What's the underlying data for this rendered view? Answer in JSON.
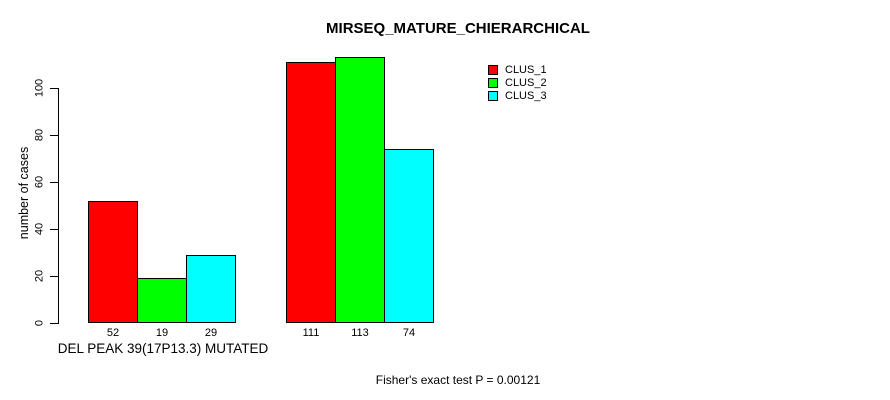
{
  "chart_data": {
    "type": "bar",
    "title": "MIRSEQ_MATURE_CHIERARCHICAL",
    "ylabel": "number of cases",
    "xlabel": "DEL PEAK 39(17P13.3) MUTATED",
    "annotation": "Fisher's exact test P = 0.00121",
    "categories": [
      "DEL PEAK 39(17P13.3) MUTATED",
      ""
    ],
    "series": [
      {
        "name": "CLUS_1",
        "color": "#ff0000",
        "values": [
          52,
          111
        ]
      },
      {
        "name": "CLUS_2",
        "color": "#00ff00",
        "values": [
          19,
          113
        ]
      },
      {
        "name": "CLUS_3",
        "color": "#00ffff",
        "values": [
          29,
          74
        ]
      }
    ],
    "bar_value_labels": [
      [
        52,
        19,
        29
      ],
      [
        111,
        113,
        74
      ]
    ],
    "yticks": [
      0,
      20,
      40,
      60,
      80,
      100
    ],
    "ylim": [
      0,
      115
    ],
    "grid": false,
    "legend_position": "top-right",
    "bar_outline_color": "#000000",
    "background_color": "#ffffff",
    "text_color": "#000000"
  }
}
